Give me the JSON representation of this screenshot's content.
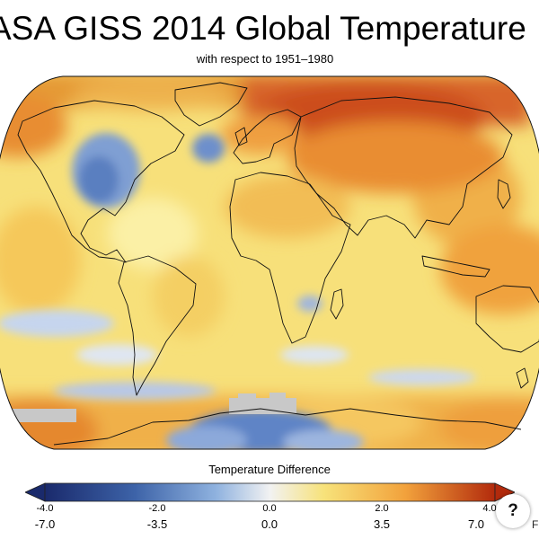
{
  "header": {
    "title": "ASA GISS 2014 Global Temperature",
    "subtitle": "with respect to 1951–1980"
  },
  "legend": {
    "title": "Temperature Difference",
    "celsius_ticks": [
      "-4.0",
      "-2.0",
      "0.0",
      "2.0",
      "4.0"
    ],
    "fahrenheit_ticks": [
      "-7.0",
      "-3.5",
      "0.0",
      "3.5",
      "7.0"
    ],
    "unit_partial": "F",
    "colors": [
      "#1a2a6c",
      "#3d63a8",
      "#8fb2df",
      "#f2f2f2",
      "#f7e27a",
      "#f2a23c",
      "#b22a0c"
    ]
  },
  "help": {
    "label": "?"
  }
}
